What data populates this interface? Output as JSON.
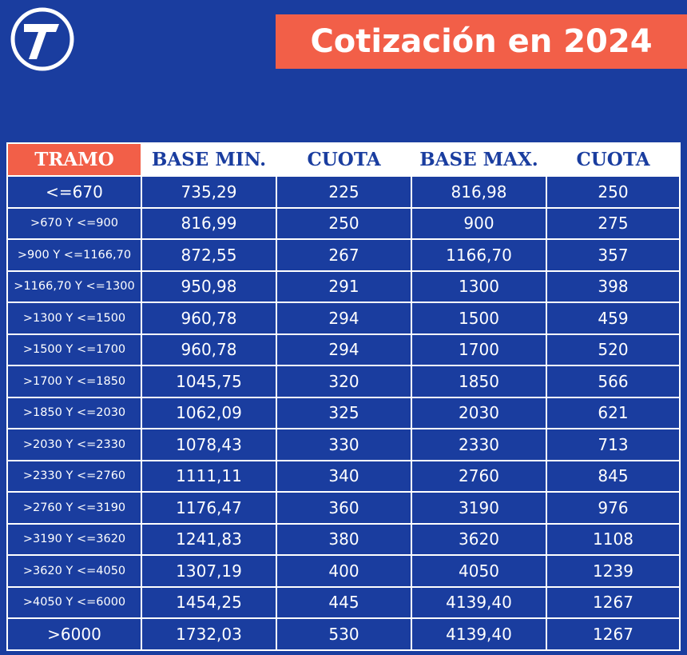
{
  "header": {
    "title": "Cotización en 2024"
  },
  "table": {
    "headers": [
      "TRAMO",
      "BASE MIN.",
      "CUOTA",
      "BASE MAX.",
      "CUOTA"
    ],
    "rows": [
      [
        "<=670",
        "735,29",
        "225",
        "816,98",
        "250"
      ],
      [
        ">670 Y <=900",
        "816,99",
        "250",
        "900",
        "275"
      ],
      [
        ">900 Y <=1166,70",
        "872,55",
        "267",
        "1166,70",
        "357"
      ],
      [
        ">1166,70 Y <=1300",
        "950,98",
        "291",
        "1300",
        "398"
      ],
      [
        ">1300 Y <=1500",
        "960,78",
        "294",
        "1500",
        "459"
      ],
      [
        ">1500 Y <=1700",
        "960,78",
        "294",
        "1700",
        "520"
      ],
      [
        ">1700 Y <=1850",
        "1045,75",
        "320",
        "1850",
        "566"
      ],
      [
        ">1850 Y <=2030",
        "1062,09",
        "325",
        "2030",
        "621"
      ],
      [
        ">2030 Y <=2330",
        "1078,43",
        "330",
        "2330",
        "713"
      ],
      [
        ">2330 Y <=2760",
        "1111,11",
        "340",
        "2760",
        "845"
      ],
      [
        ">2760 Y <=3190",
        "1176,47",
        "360",
        "3190",
        "976"
      ],
      [
        ">3190 Y <=3620",
        "1241,83",
        "380",
        "3620",
        "1108"
      ],
      [
        ">3620 Y <=4050",
        "1307,19",
        "400",
        "4050",
        "1239"
      ],
      [
        ">4050 Y <=6000",
        "1454,25",
        "445",
        "4139,40",
        "1267"
      ],
      [
        ">6000",
        "1732,03",
        "530",
        "4139,40",
        "1267"
      ]
    ]
  }
}
